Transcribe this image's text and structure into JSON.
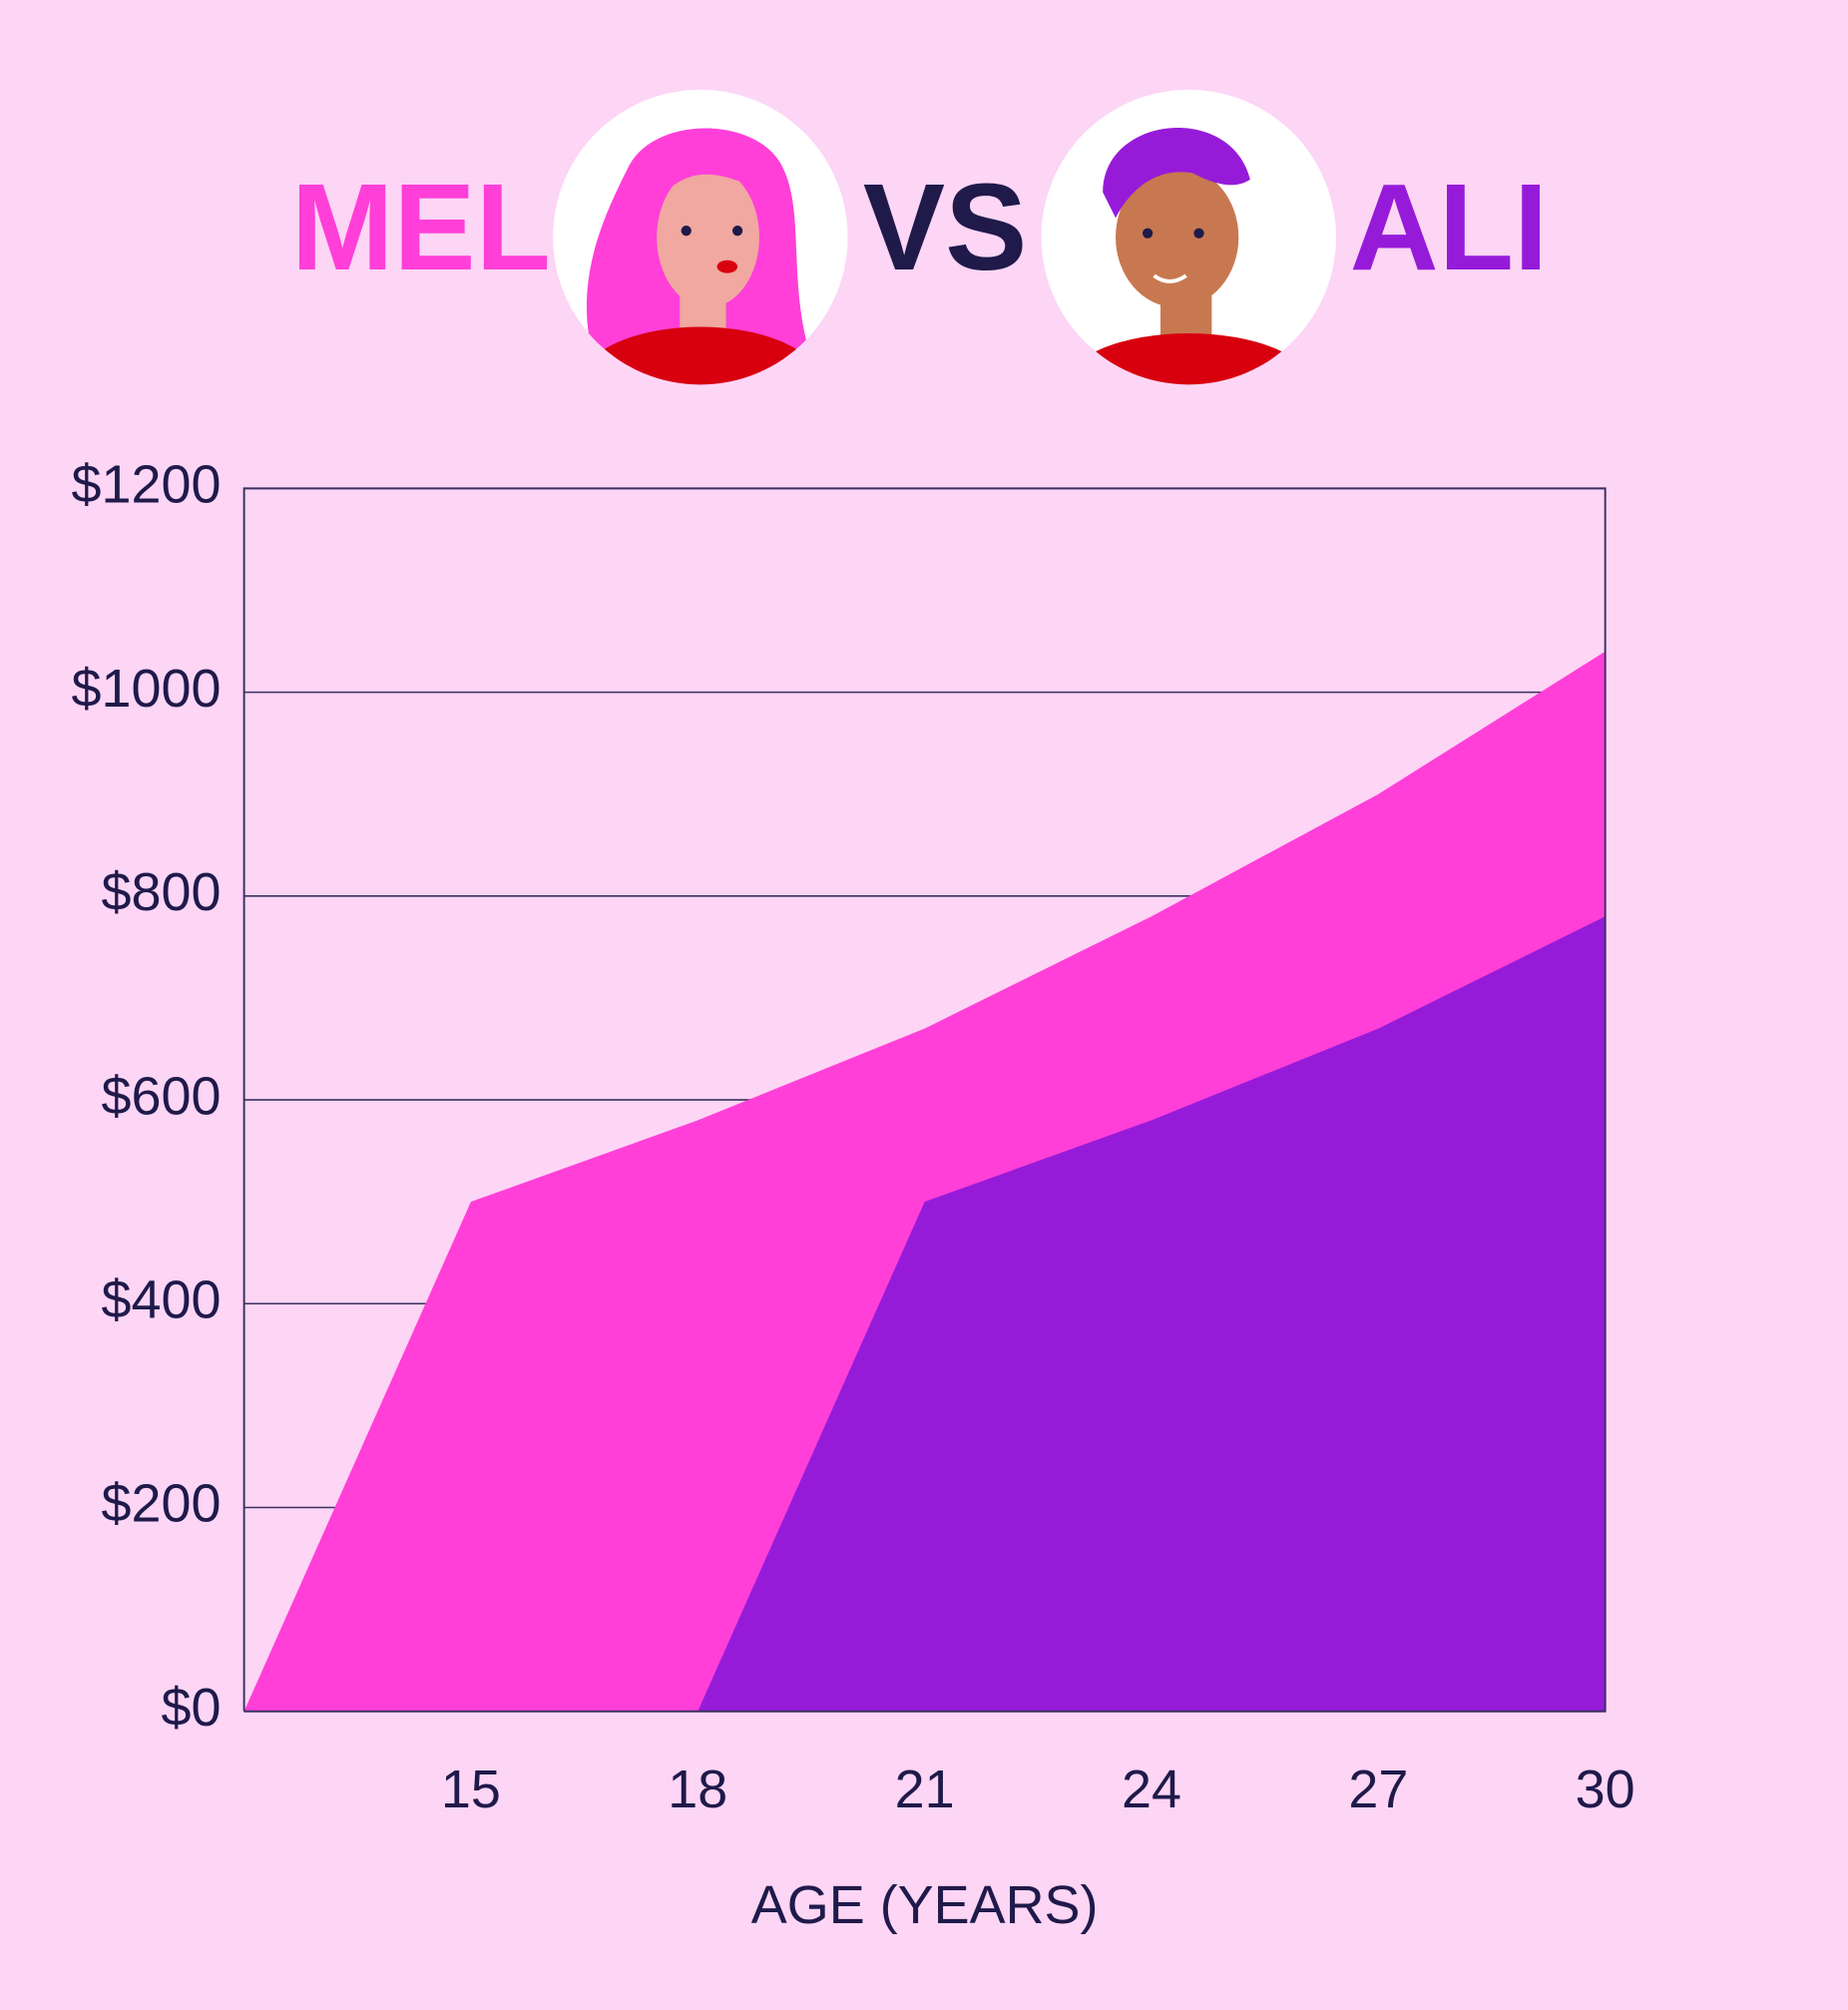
{
  "header": {
    "versus": "VS"
  },
  "chart_data": {
    "type": "area",
    "x_label": "AGE (YEARS)",
    "x": [
      12,
      15,
      18,
      21,
      24,
      27,
      30
    ],
    "series": [
      {
        "name": "MEL",
        "color": "#ff3fd8",
        "values": [
          0,
          500,
          580,
          670,
          780,
          900,
          1040
        ]
      },
      {
        "name": "ALI",
        "color": "#961bd9",
        "values": [
          null,
          null,
          0,
          500,
          580,
          670,
          780
        ]
      }
    ],
    "xlim": [
      12,
      30
    ],
    "xticks": [
      15,
      18,
      21,
      24,
      27,
      30
    ],
    "ylim": [
      0,
      1200
    ],
    "yticks": [
      {
        "value": 0,
        "label": "$0"
      },
      {
        "value": 200,
        "label": "$200"
      },
      {
        "value": 400,
        "label": "$400"
      },
      {
        "value": 600,
        "label": "$600"
      },
      {
        "value": 800,
        "label": "$800"
      },
      {
        "value": 1000,
        "label": "$1000"
      },
      {
        "value": 1200,
        "label": "$1200"
      }
    ],
    "grid": true
  }
}
